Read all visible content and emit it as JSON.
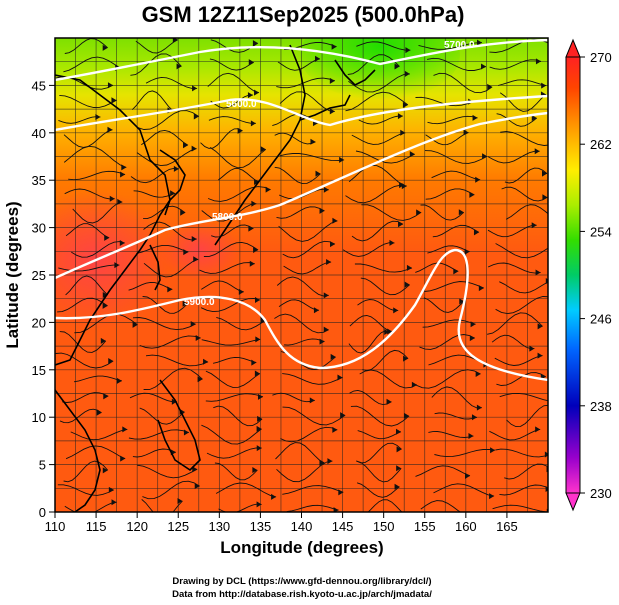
{
  "title": "GSM 12Z11Sep2025 (500.0hPa)",
  "xlabel": "Longitude (degrees)",
  "ylabel": "Latitude  (degrees)",
  "x_ticks": [
    "110",
    "115",
    "120",
    "125",
    "130",
    "135",
    "140",
    "145",
    "150",
    "155",
    "160",
    "165"
  ],
  "y_ticks": [
    "0",
    "5",
    "10",
    "15",
    "20",
    "25",
    "30",
    "35",
    "40",
    "45"
  ],
  "xlim": [
    110,
    170
  ],
  "ylim": [
    0,
    50
  ],
  "colorbar": {
    "labels": [
      "230",
      "238",
      "246",
      "254",
      "262",
      "270"
    ],
    "range": [
      230,
      270
    ],
    "colors": [
      "#ff33cc",
      "#6600aa",
      "#0000cc",
      "#0066ff",
      "#00ccff",
      "#00cc66",
      "#33dd00",
      "#aaee00",
      "#ffee00",
      "#ff9900",
      "#ff4400",
      "#ff2222"
    ]
  },
  "contours": [
    {
      "label": "5700.0"
    },
    {
      "label": "5600.0"
    },
    {
      "label": "5800.0"
    },
    {
      "label": "5900.0"
    }
  ],
  "credits": {
    "line1": "Drawing by DCL (https://www.gfd-dennou.org/library/dcl/)",
    "line2": "Data from http://database.rish.kyoto-u.ac.jp/arch/jmadata/"
  }
}
